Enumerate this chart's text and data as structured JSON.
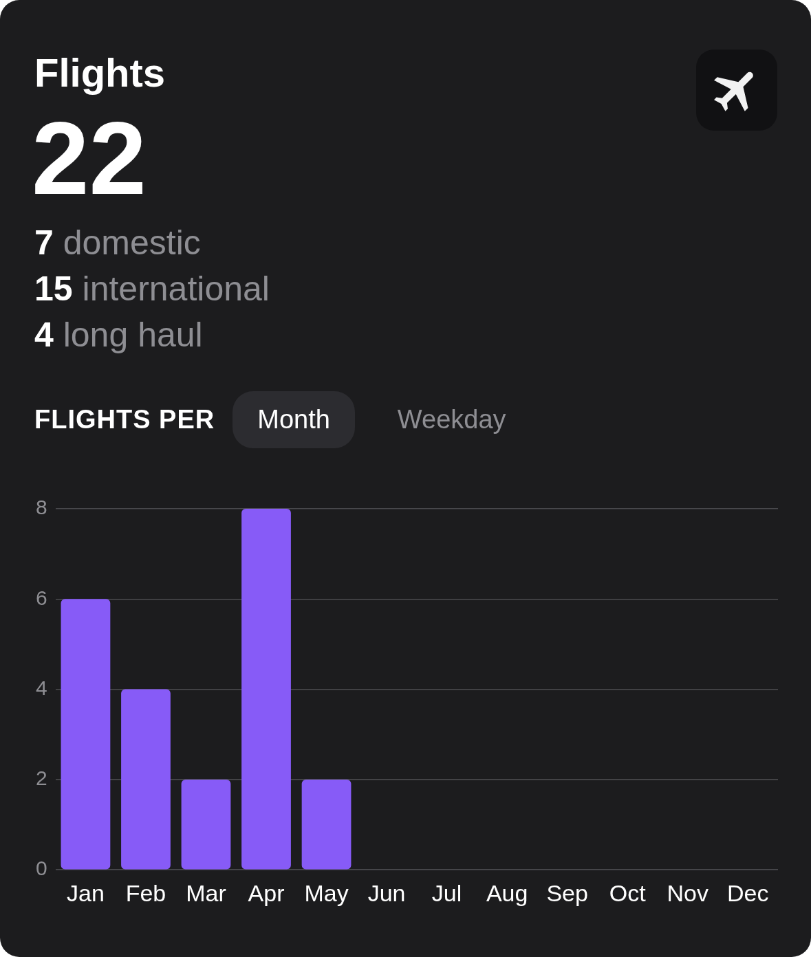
{
  "chart_data": {
    "type": "bar",
    "title": "Flights",
    "subtitle": "22",
    "annotations": [
      "7 domestic",
      "15 international",
      "4 long haul",
      "FLIGHTS PER",
      "Month",
      "Weekday"
    ],
    "categories": [
      "Jan",
      "Feb",
      "Mar",
      "Apr",
      "May",
      "Jun",
      "Jul",
      "Aug",
      "Sep",
      "Oct",
      "Nov",
      "Dec"
    ],
    "values": [
      6,
      4,
      2,
      8,
      2,
      0,
      0,
      0,
      0,
      0,
      0,
      0
    ],
    "color": "#875bf7",
    "ylim": [
      0,
      8
    ],
    "yticks": [
      0,
      2,
      4,
      6,
      8
    ],
    "grid": "y",
    "legend": false
  }
}
